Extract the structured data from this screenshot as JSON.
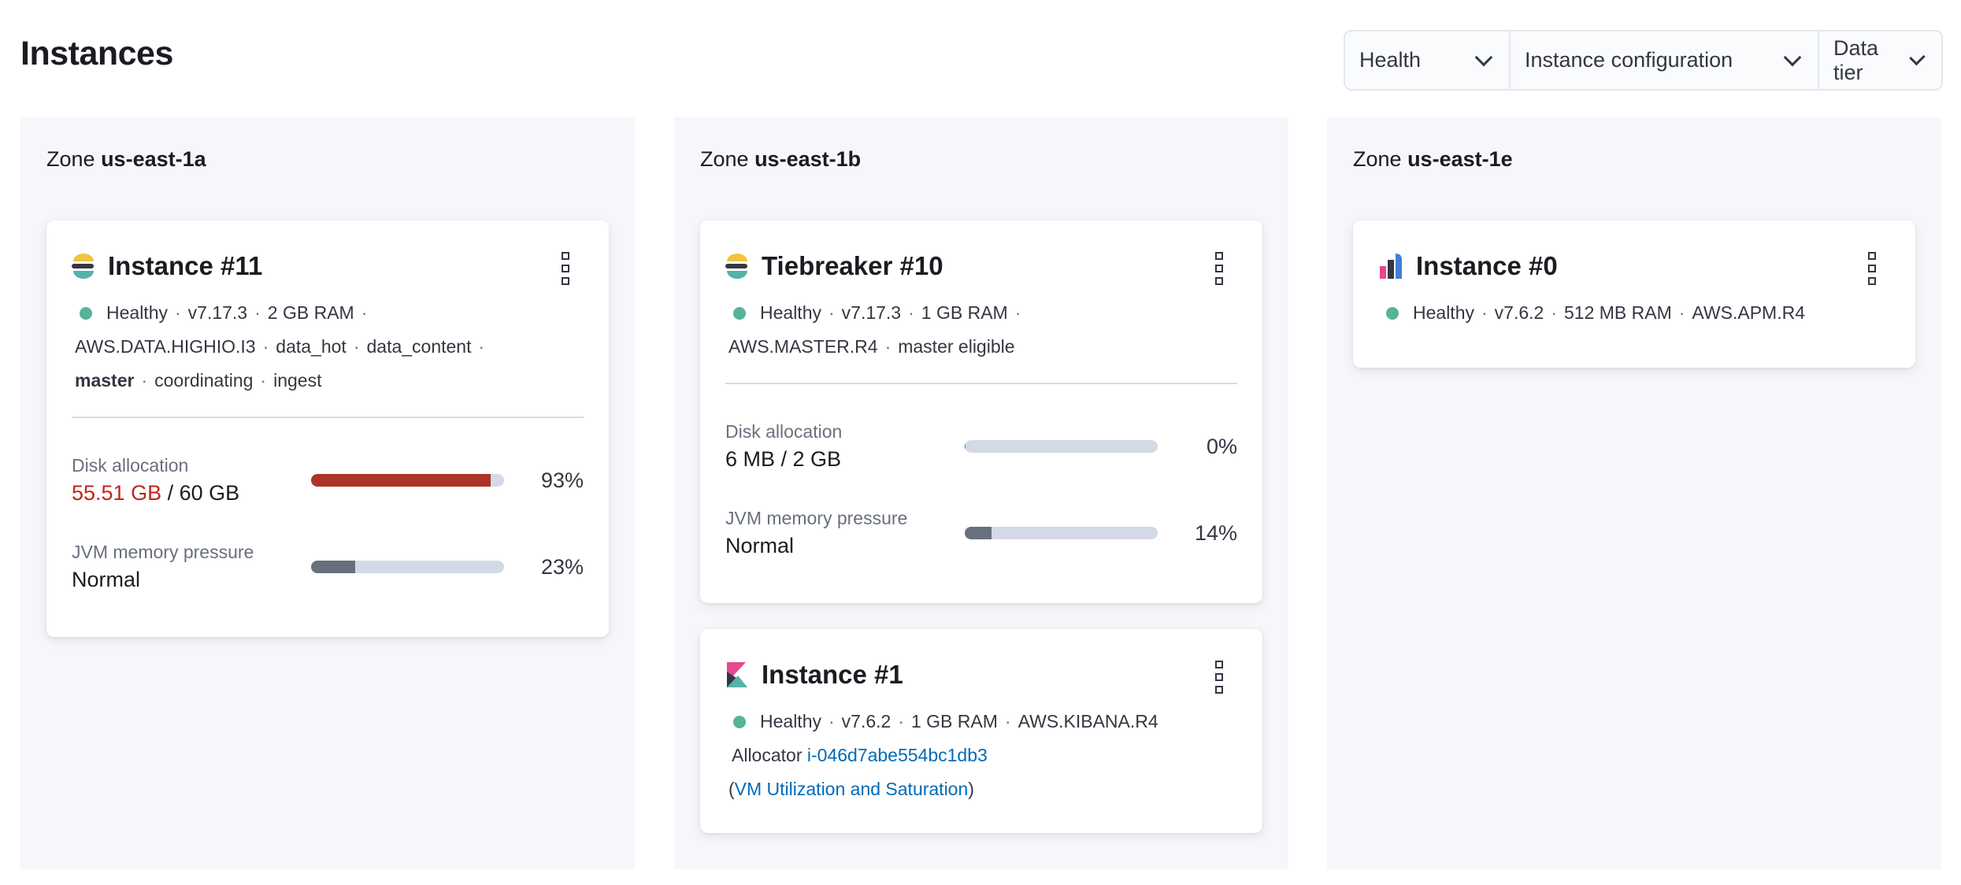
{
  "page": {
    "title": "Instances"
  },
  "filters": [
    {
      "label": "Health"
    },
    {
      "label": "Instance configuration"
    },
    {
      "label": "Data tier"
    }
  ],
  "colors": {
    "healthy": "#54b399",
    "disk_critical": "#bd271e",
    "bar_fill": "#69707d",
    "bar_track": "#d3dae6",
    "link": "#006bb8"
  },
  "zones": [
    {
      "prefix": "Zone",
      "name": "us-east-1a",
      "cards": [
        {
          "icon": "elasticsearch-logo-icon",
          "title": "Instance #11",
          "status": "Healthy",
          "version": "v7.17.3",
          "ram": "2 GB RAM",
          "config": "AWS.DATA.HIGHIO.I3",
          "roles": [
            "data_hot",
            "data_content",
            "master",
            "coordinating",
            "ingest"
          ],
          "disk": {
            "label": "Disk allocation",
            "used": "55.51 GB",
            "total": "/ 60 GB",
            "percent": 93,
            "pct_text": "93%"
          },
          "jvm": {
            "label": "JVM memory pressure",
            "value": "Normal",
            "percent": 23,
            "pct_text": "23%"
          }
        }
      ]
    },
    {
      "prefix": "Zone",
      "name": "us-east-1b",
      "cards": [
        {
          "icon": "elasticsearch-logo-icon",
          "title": "Tiebreaker #10",
          "status": "Healthy",
          "version": "v7.17.3",
          "ram": "1 GB RAM",
          "config": "AWS.MASTER.R4",
          "roles": [
            "master eligible"
          ],
          "disk": {
            "label": "Disk allocation",
            "value": "6 MB / 2 GB",
            "percent": 0,
            "pct_text": "0%"
          },
          "jvm": {
            "label": "JVM memory pressure",
            "value": "Normal",
            "percent": 14,
            "pct_text": "14%"
          }
        },
        {
          "icon": "kibana-logo-icon",
          "title": "Instance #1",
          "status": "Healthy",
          "version": "v7.6.2",
          "ram": "1 GB RAM",
          "config": "AWS.KIBANA.R4",
          "allocator_label": "Allocator",
          "allocator_id": "i-046d7abe554bc1db3",
          "vm_link": "VM Utilization and Saturation"
        }
      ]
    },
    {
      "prefix": "Zone",
      "name": "us-east-1e",
      "cards": [
        {
          "icon": "apm-logo-icon",
          "title": "Instance #0",
          "status": "Healthy",
          "version": "v7.6.2",
          "ram": "512 MB RAM",
          "config": "AWS.APM.R4"
        }
      ]
    }
  ]
}
